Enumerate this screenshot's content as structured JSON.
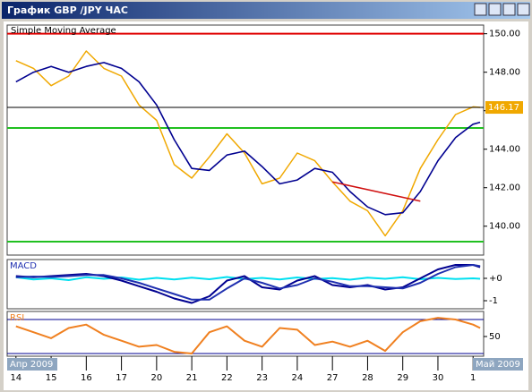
{
  "window_title": "График GBP /JPY  ЧАС",
  "chart_data": [
    {
      "type": "line",
      "legend_label": true,
      "x": [
        0,
        0.5,
        1,
        1.5,
        2,
        2.5,
        3,
        3.5,
        4,
        4.5,
        5,
        5.5,
        6,
        6.5,
        7,
        7.5,
        8,
        8.5,
        9,
        9.5,
        10,
        10.5,
        11,
        11.5,
        12,
        12.5,
        13,
        13.2
      ],
      "series": [
        {
          "color": "#f0a800",
          "width": 1.5,
          "values": [
            148.6,
            148.2,
            147.3,
            147.8,
            149.1,
            148.2,
            147.8,
            146.3,
            145.5,
            143.2,
            142.5,
            143.6,
            144.8,
            143.8,
            142.2,
            142.5,
            143.8,
            143.4,
            142.3,
            141.3,
            140.8,
            139.5,
            140.8,
            143.0,
            144.5,
            145.8,
            146.2,
            146.17
          ]
        },
        {
          "name": "Simple Moving Average",
          "color": "#000090",
          "width": 1.6,
          "values": [
            147.5,
            148.0,
            148.3,
            148.0,
            148.3,
            148.5,
            148.2,
            147.5,
            146.3,
            144.5,
            143.0,
            142.9,
            143.7,
            143.9,
            143.1,
            142.2,
            142.4,
            143.0,
            142.8,
            141.8,
            141.0,
            140.6,
            140.7,
            141.8,
            143.4,
            144.6,
            145.3,
            145.4
          ]
        }
      ],
      "trendline": {
        "color": "#d01010",
        "x": [
          9,
          11.5
        ],
        "values": [
          142.3,
          141.3
        ]
      },
      "hlines": [
        {
          "value": 150,
          "color": "#e00000"
        },
        {
          "value": 145.1,
          "color": "#20c020"
        },
        {
          "value": 139.2,
          "color": "#20c020"
        }
      ],
      "last_price": 146.17,
      "last_price_color": "#f0a800",
      "xlim": [
        -0.25,
        13.3
      ],
      "ylim": [
        138.5,
        150.45
      ],
      "yticks": [
        {
          "value": 150,
          "label": "150.00"
        },
        {
          "value": 148,
          "label": "148.00"
        },
        {
          "value": 146,
          "label": "146.00"
        },
        {
          "value": 144,
          "label": "144.00"
        },
        {
          "value": 142,
          "label": "142.00"
        },
        {
          "value": 140,
          "label": "140.00"
        }
      ]
    },
    {
      "type": "line",
      "title": "MACD",
      "x": [
        0,
        0.5,
        1,
        1.5,
        2,
        2.5,
        3,
        3.5,
        4,
        4.5,
        5,
        5.5,
        6,
        6.5,
        7,
        7.5,
        8,
        8.5,
        9,
        9.5,
        10,
        10.5,
        11,
        11.5,
        12,
        12.5,
        13,
        13.2
      ],
      "series": [
        {
          "color": "#00e0f0",
          "width": 2,
          "values": [
            0.05,
            -0.05,
            0.0,
            -0.08,
            0.05,
            -0.02,
            0.04,
            -0.06,
            0.02,
            -0.05,
            0.03,
            -0.04,
            0.06,
            -0.03,
            0.02,
            -0.05,
            0.04,
            -0.03,
            0.01,
            -0.06,
            0.03,
            -0.02,
            0.05,
            -0.04,
            0.02,
            -0.03,
            0.0,
            -0.02
          ]
        },
        {
          "color": "#000090",
          "width": 2,
          "values": [
            0.1,
            0.05,
            0.1,
            0.15,
            0.2,
            0.1,
            -0.1,
            -0.35,
            -0.6,
            -0.9,
            -1.1,
            -0.8,
            -0.1,
            0.1,
            -0.4,
            -0.5,
            -0.1,
            0.1,
            -0.3,
            -0.4,
            -0.3,
            -0.5,
            -0.4,
            0.0,
            0.4,
            0.6,
            0.6,
            0.5
          ]
        },
        {
          "color": "#2030b0",
          "width": 2,
          "values": [
            0.05,
            0.08,
            0.06,
            0.1,
            0.15,
            0.15,
            0.0,
            -0.2,
            -0.45,
            -0.7,
            -0.95,
            -0.95,
            -0.45,
            0.0,
            -0.2,
            -0.45,
            -0.3,
            0.0,
            -0.15,
            -0.35,
            -0.35,
            -0.4,
            -0.45,
            -0.2,
            0.2,
            0.5,
            0.6,
            0.55
          ]
        }
      ],
      "xlim": [
        -0.25,
        13.3
      ],
      "ylim": [
        -1.36,
        0.84
      ],
      "yticks": [
        {
          "value": 0,
          "label": "+0"
        },
        -1
      ]
    },
    {
      "type": "line",
      "title": "RSI",
      "x": [
        0,
        0.5,
        1,
        1.5,
        2,
        2.5,
        3,
        3.5,
        4,
        4.5,
        5,
        5.5,
        6,
        6.5,
        7,
        7.5,
        8,
        8.5,
        9,
        9.5,
        10,
        10.5,
        11,
        11.5,
        12,
        12.5,
        13,
        13.2
      ],
      "series": [
        {
          "color": "#f08020",
          "width": 2,
          "values": [
            62,
            55,
            48,
            60,
            64,
            52,
            45,
            38,
            40,
            32,
            30,
            55,
            62,
            45,
            38,
            60,
            58,
            40,
            44,
            38,
            45,
            33,
            55,
            68,
            72,
            70,
            64,
            60
          ]
        }
      ],
      "levels": [
        {
          "value": 70,
          "color": "#000090"
        },
        {
          "value": 30,
          "color": "#000090"
        }
      ],
      "xlim": [
        -0.25,
        13.3
      ],
      "ylim": [
        26.8,
        79.5
      ],
      "yticks": [
        50
      ],
      "xticks": [
        {
          "value": 0,
          "label": "14"
        },
        {
          "value": 1,
          "label": "15"
        },
        {
          "value": 2,
          "label": "16"
        },
        {
          "value": 3,
          "label": "17"
        },
        {
          "value": 4,
          "label": "20"
        },
        {
          "value": 5,
          "label": "21"
        },
        {
          "value": 6,
          "label": "22"
        },
        {
          "value": 7,
          "label": "23"
        },
        {
          "value": 8,
          "label": "24"
        },
        {
          "value": 9,
          "label": "27"
        },
        {
          "value": 10,
          "label": "28"
        },
        {
          "value": 11,
          "label": "29"
        },
        {
          "value": 12,
          "label": "30"
        },
        {
          "value": 13,
          "label": "1"
        }
      ],
      "period_labels": [
        "Апр 2009",
        "Май 2009"
      ]
    }
  ]
}
